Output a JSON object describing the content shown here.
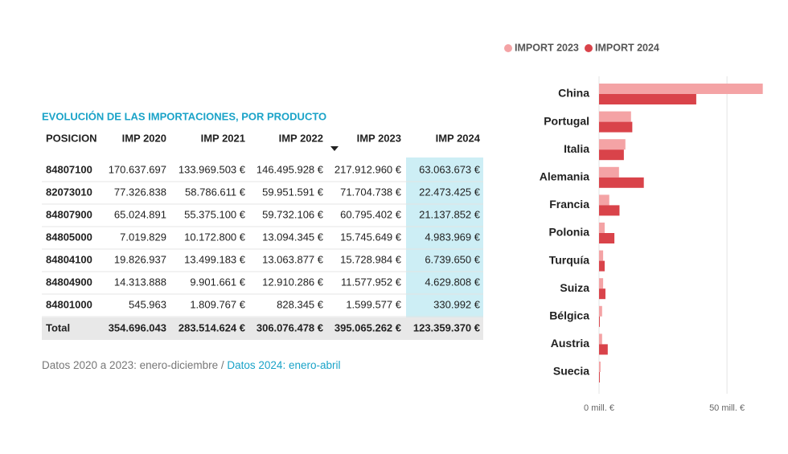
{
  "table": {
    "title": "EVOLUCIÓN DE LAS IMPORTACIONES, POR PRODUCTO",
    "columns": [
      "POSICION",
      "IMP 2020",
      "IMP 2021",
      "IMP 2022",
      "IMP 2023",
      "IMP 2024"
    ],
    "rows": [
      [
        "84807100",
        "170.637.697",
        "133.969.503 €",
        "146.495.928 €",
        "217.912.960 €",
        "63.063.673 €"
      ],
      [
        "82073010",
        "77.326.838",
        "58.786.611 €",
        "59.951.591 €",
        "71.704.738 €",
        "22.473.425 €"
      ],
      [
        "84807900",
        "65.024.891",
        "55.375.100 €",
        "59.732.106 €",
        "60.795.402 €",
        "21.137.852 €"
      ],
      [
        "84805000",
        "7.019.829",
        "10.172.800 €",
        "13.094.345 €",
        "15.745.649 €",
        "4.983.969 €"
      ],
      [
        "84804100",
        "19.826.937",
        "13.499.183 €",
        "13.063.877 €",
        "15.728.984 €",
        "6.739.650 €"
      ],
      [
        "84804900",
        "14.313.888",
        "9.901.661 €",
        "12.910.286 €",
        "11.577.952 €",
        "4.629.808 €"
      ],
      [
        "84801000",
        "545.963",
        "1.809.767 €",
        "828.345 €",
        "1.599.577 €",
        "330.992 €"
      ]
    ],
    "total": [
      "Total",
      "354.696.043",
      "283.514.624 €",
      "306.076.478 €",
      "395.065.262 €",
      "123.359.370 €"
    ]
  },
  "note": {
    "main": "Datos 2020 a 2023: enero-diciembre / ",
    "highlight": "Datos 2024: enero-abril"
  },
  "chart_data": {
    "type": "bar",
    "orientation": "horizontal",
    "categories": [
      "China",
      "Portugal",
      "Italia",
      "Alemania",
      "Francia",
      "Polonia",
      "Turquía",
      "Suiza",
      "Bélgica",
      "Austria",
      "Suecia"
    ],
    "series": [
      {
        "name": "IMPORT 2023",
        "color": "#f4a3a5",
        "values": [
          64,
          12.5,
          10.3,
          7.8,
          4,
          2.2,
          1.6,
          1.6,
          1.2,
          1.2,
          0.6
        ]
      },
      {
        "name": "IMPORT 2024",
        "color": "#d9434a",
        "values": [
          38,
          13,
          9.7,
          17.5,
          8,
          6,
          2.2,
          2.5,
          0.3,
          3.4,
          0.3
        ]
      }
    ],
    "xlim": [
      0,
      66
    ],
    "xticks": [
      {
        "value": 0,
        "label": "0 mill. €"
      },
      {
        "value": 50,
        "label": "50 mill. €"
      }
    ],
    "grid": true,
    "legend": "top"
  }
}
